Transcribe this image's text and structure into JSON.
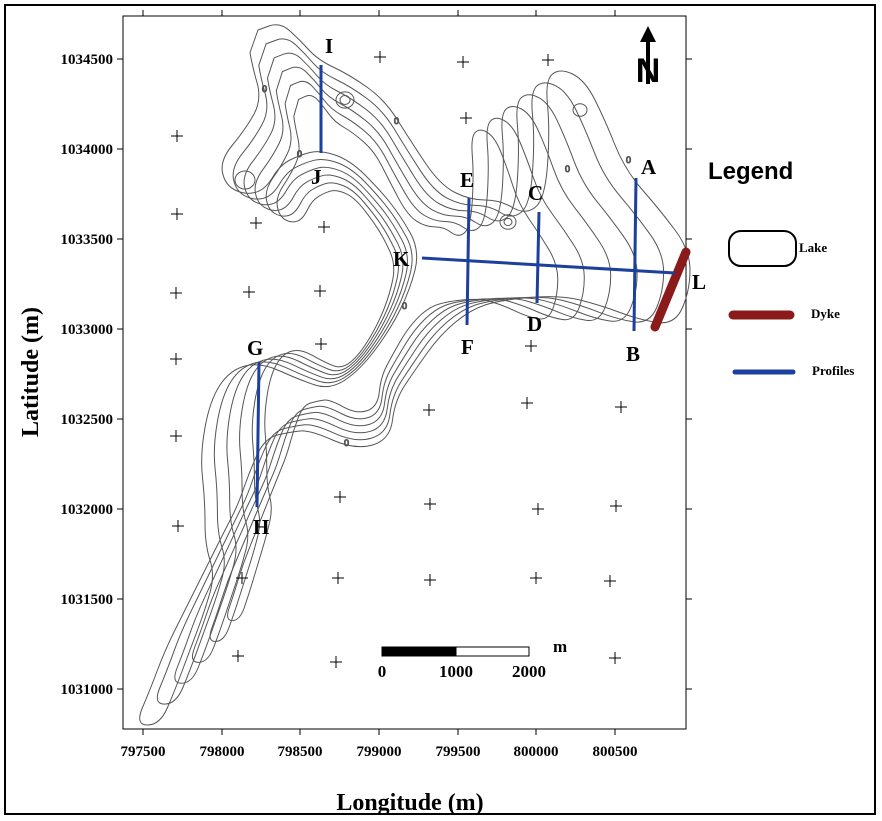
{
  "map": {
    "x_axis_title": "Longitude (m)",
    "y_axis_title": "Latitude (m)",
    "x_ticks": [
      "797500",
      "798000",
      "798500",
      "799000",
      "799500",
      "800000",
      "800500"
    ],
    "y_ticks": [
      "1034500",
      "1034000",
      "1033500",
      "1033000",
      "1032500",
      "1032000",
      "1031500",
      "1031000"
    ],
    "x_range": [
      797480,
      800930
    ],
    "y_range": [
      1030780,
      1034740
    ],
    "north_arrow_label": "N",
    "contour_label": "0"
  },
  "profiles": [
    {
      "start": "A",
      "end": "B"
    },
    {
      "start": "C",
      "end": "D"
    },
    {
      "start": "E",
      "end": "F"
    },
    {
      "start": "G",
      "end": "H"
    },
    {
      "start": "I",
      "end": "J"
    },
    {
      "start": "K",
      "end": "L"
    }
  ],
  "legend": {
    "title": "Legend",
    "items": [
      {
        "label": "Lake",
        "symbol": "lake-outline"
      },
      {
        "label": "Dyke",
        "symbol": "line",
        "color": "#8b1a1a"
      },
      {
        "label": "Profiles",
        "symbol": "line",
        "color": "#1d3f9e"
      }
    ]
  },
  "scale_bar": {
    "unit": "m",
    "labels": [
      "0",
      "1000",
      "2000"
    ]
  },
  "colors": {
    "profile": "#1d3f9e",
    "dyke": "#8b1a1a",
    "contour": "#555555"
  }
}
